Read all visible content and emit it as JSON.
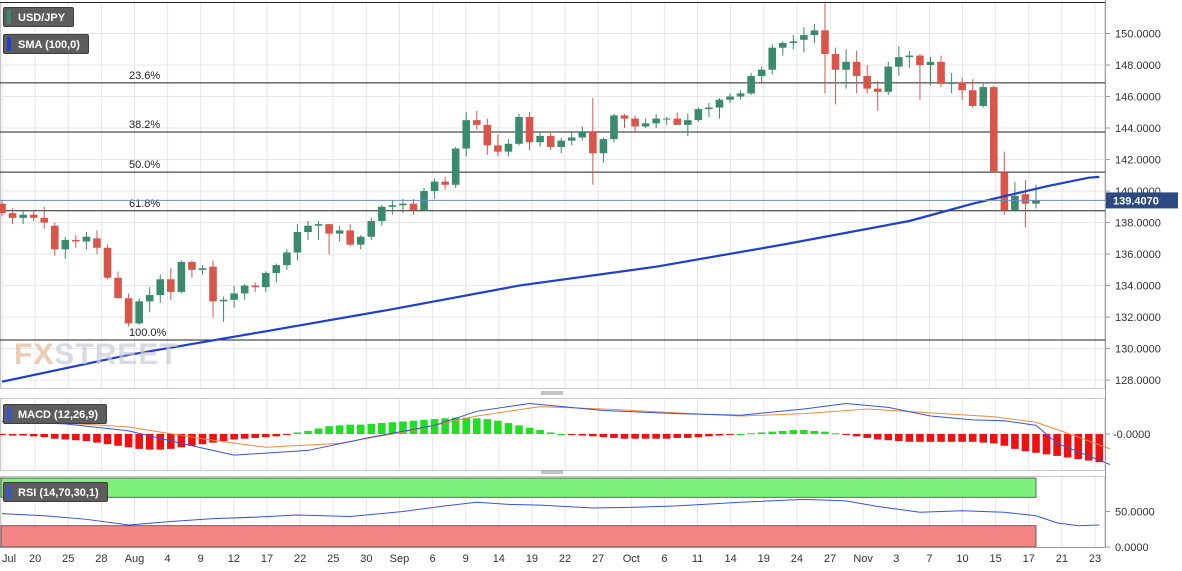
{
  "instrument": {
    "label": "USD/JPY"
  },
  "sma_label": "SMA (100,0)",
  "macd_label": "MACD (12,26,9)",
  "rsi_label": "RSI (14,70,30,1)",
  "logo": {
    "part1": "FX",
    "part2": "STREET"
  },
  "colors": {
    "bull": "#3a8a6e",
    "bear": "#d9554a",
    "sma": "#1f3fcf",
    "macd": "#3355dd",
    "signal": "#f08a3c",
    "hist_pos": "#22dd22",
    "hist_neg": "#ee1111",
    "rsi": "#3355dd",
    "overbought": "#7cf27c",
    "oversold": "#f48484",
    "grid": "#e6e6e6",
    "price_tag": "#2d4b82"
  },
  "chart_data": [
    {
      "type": "candlestick",
      "title": "USD/JPY",
      "current_price": "139.4070",
      "ylim": [
        127.5,
        152.0
      ],
      "y_ticks": [
        "128.0000",
        "130.0000",
        "132.0000",
        "134.0000",
        "136.0000",
        "138.0000",
        "140.0000",
        "142.0000",
        "144.0000",
        "146.0000",
        "148.0000",
        "150.0000"
      ],
      "x_ticks": [
        "Jul",
        "20",
        "25",
        "28",
        "Aug",
        "4",
        "9",
        "12",
        "17",
        "22",
        "25",
        "30",
        "Sep",
        "6",
        "9",
        "14",
        "19",
        "22",
        "27",
        "Oct",
        "6",
        "11",
        "14",
        "19",
        "24",
        "27",
        "Nov",
        "3",
        "7",
        "10",
        "15",
        "17",
        "21",
        "23"
      ],
      "fib_levels": [
        {
          "label": "23.6%",
          "value": 146.87
        },
        {
          "label": "38.2%",
          "value": 143.75
        },
        {
          "label": "50.0%",
          "value": 141.2
        },
        {
          "label": "61.8%",
          "value": 138.75
        },
        {
          "label": "100.0%",
          "value": 130.55
        }
      ],
      "ohlc": [
        [
          139.2,
          139.4,
          138.4,
          138.6
        ],
        [
          138.6,
          138.9,
          137.9,
          138.3
        ],
        [
          138.3,
          138.7,
          137.9,
          138.5
        ],
        [
          138.5,
          138.8,
          138.1,
          138.3
        ],
        [
          138.3,
          139.0,
          137.6,
          138.0
        ],
        [
          137.8,
          138.0,
          135.9,
          136.3
        ],
        [
          136.3,
          137.1,
          135.7,
          136.9
        ],
        [
          136.9,
          137.2,
          136.4,
          136.8
        ],
        [
          136.8,
          137.4,
          136.3,
          137.1
        ],
        [
          137.0,
          137.5,
          136.0,
          136.4
        ],
        [
          136.4,
          136.6,
          134.4,
          134.5
        ],
        [
          134.5,
          134.9,
          133.2,
          133.2
        ],
        [
          133.2,
          133.5,
          131.4,
          131.6
        ],
        [
          131.6,
          133.2,
          131.5,
          133.0
        ],
        [
          133.0,
          133.9,
          132.3,
          133.4
        ],
        [
          133.4,
          134.7,
          132.9,
          134.4
        ],
        [
          134.4,
          135.1,
          133.1,
          133.6
        ],
        [
          133.6,
          135.6,
          133.5,
          135.5
        ],
        [
          135.5,
          135.6,
          134.5,
          135.0
        ],
        [
          135.0,
          135.3,
          134.7,
          135.1
        ],
        [
          135.2,
          135.6,
          132.0,
          133.0
        ],
        [
          133.0,
          133.3,
          131.7,
          133.1
        ],
        [
          133.1,
          134.0,
          132.6,
          133.5
        ],
        [
          133.5,
          134.1,
          133.1,
          134.0
        ],
        [
          134.0,
          134.2,
          133.6,
          133.9
        ],
        [
          133.9,
          134.9,
          133.6,
          134.8
        ],
        [
          134.8,
          135.4,
          134.2,
          135.3
        ],
        [
          135.3,
          136.3,
          135.0,
          136.1
        ],
        [
          136.1,
          137.9,
          135.6,
          137.4
        ],
        [
          137.4,
          138.1,
          136.9,
          137.8
        ],
        [
          137.8,
          138.1,
          136.9,
          137.9
        ],
        [
          137.9,
          137.9,
          136.0,
          137.3
        ],
        [
          137.3,
          137.8,
          136.8,
          137.5
        ],
        [
          137.5,
          137.9,
          136.5,
          136.6
        ],
        [
          136.6,
          137.2,
          136.3,
          137.1
        ],
        [
          137.1,
          138.3,
          136.9,
          138.1
        ],
        [
          138.1,
          139.1,
          137.8,
          139.0
        ],
        [
          139.0,
          139.4,
          138.5,
          139.1
        ],
        [
          139.1,
          139.5,
          138.6,
          139.2
        ],
        [
          139.2,
          139.5,
          138.5,
          138.8
        ],
        [
          138.8,
          140.2,
          138.8,
          140.0
        ],
        [
          140.0,
          140.8,
          139.5,
          140.6
        ],
        [
          140.6,
          140.9,
          140.1,
          140.4
        ],
        [
          140.4,
          142.8,
          140.2,
          142.7
        ],
        [
          142.7,
          145.0,
          142.2,
          144.5
        ],
        [
          144.5,
          145.1,
          143.9,
          144.2
        ],
        [
          144.2,
          144.6,
          142.3,
          142.9
        ],
        [
          142.9,
          143.6,
          142.2,
          142.5
        ],
        [
          142.5,
          143.3,
          142.2,
          143.0
        ],
        [
          143.0,
          144.9,
          142.9,
          144.7
        ],
        [
          144.7,
          145.0,
          142.6,
          143.1
        ],
        [
          143.1,
          143.8,
          142.8,
          143.5
        ],
        [
          143.5,
          143.8,
          142.6,
          142.8
        ],
        [
          142.8,
          143.4,
          142.4,
          143.2
        ],
        [
          143.2,
          143.8,
          142.9,
          143.4
        ],
        [
          143.4,
          144.1,
          143.2,
          143.8
        ],
        [
          143.8,
          145.9,
          140.4,
          142.4
        ],
        [
          142.4,
          143.4,
          141.8,
          143.3
        ],
        [
          143.3,
          144.9,
          143.1,
          144.8
        ],
        [
          144.8,
          144.9,
          144.0,
          144.6
        ],
        [
          144.6,
          144.8,
          143.8,
          144.1
        ],
        [
          144.1,
          144.6,
          144.0,
          144.3
        ],
        [
          144.3,
          144.9,
          144.0,
          144.6
        ],
        [
          144.6,
          144.7,
          144.2,
          144.6
        ],
        [
          144.6,
          145.0,
          144.3,
          144.2
        ],
        [
          144.2,
          144.9,
          143.5,
          144.5
        ],
        [
          144.5,
          145.3,
          144.4,
          145.2
        ],
        [
          145.2,
          145.6,
          144.7,
          145.3
        ],
        [
          145.3,
          145.9,
          144.6,
          145.8
        ],
        [
          145.8,
          146.2,
          145.6,
          146.0
        ],
        [
          146.0,
          146.4,
          145.8,
          146.2
        ],
        [
          146.2,
          147.5,
          146.1,
          147.3
        ],
        [
          147.3,
          147.9,
          146.9,
          147.7
        ],
        [
          147.7,
          149.3,
          147.4,
          149.1
        ],
        [
          149.1,
          149.5,
          148.6,
          149.4
        ],
        [
          149.4,
          149.9,
          149.0,
          149.5
        ],
        [
          149.6,
          150.4,
          148.8,
          149.9
        ],
        [
          149.9,
          150.6,
          149.4,
          150.2
        ],
        [
          150.2,
          151.9,
          146.2,
          148.7
        ],
        [
          148.7,
          149.1,
          145.5,
          147.7
        ],
        [
          147.7,
          149.0,
          146.5,
          148.2
        ],
        [
          148.2,
          148.9,
          146.2,
          147.3
        ],
        [
          147.3,
          148.0,
          146.2,
          146.5
        ],
        [
          146.5,
          147.0,
          145.1,
          146.3
        ],
        [
          146.3,
          148.2,
          146.1,
          147.9
        ],
        [
          147.9,
          149.2,
          147.3,
          148.5
        ],
        [
          148.5,
          148.9,
          147.8,
          148.6
        ],
        [
          148.6,
          148.7,
          145.8,
          148.0
        ],
        [
          148.0,
          148.5,
          146.7,
          148.2
        ],
        [
          148.2,
          148.6,
          146.6,
          146.8
        ],
        [
          146.8,
          147.5,
          146.2,
          146.9
        ],
        [
          146.9,
          147.2,
          145.8,
          146.4
        ],
        [
          146.4,
          147.1,
          145.3,
          145.4
        ],
        [
          145.4,
          146.8,
          145.3,
          146.6
        ],
        [
          146.6,
          146.7,
          141.3,
          141.2
        ],
        [
          141.2,
          142.5,
          138.5,
          138.8
        ],
        [
          138.8,
          140.6,
          138.8,
          139.7
        ],
        [
          139.8,
          140.7,
          137.7,
          139.2
        ],
        [
          139.2,
          140.4,
          138.9,
          139.4
        ]
      ],
      "sma_series": [
        [
          0,
          127.9
        ],
        [
          12,
          129.6
        ],
        [
          25,
          131.1
        ],
        [
          37,
          132.5
        ],
        [
          49,
          134.0
        ],
        [
          62,
          135.2
        ],
        [
          74,
          136.6
        ],
        [
          86,
          138.1
        ],
        [
          92,
          139.2
        ],
        [
          99,
          140.3
        ],
        [
          103,
          140.85
        ],
        [
          104,
          140.9
        ]
      ],
      "x_labels_note": "",
      "ylabel": ""
    },
    {
      "type": "line",
      "title": "MACD (12,26,9)",
      "y_ticks": [
        "-0.0000"
      ],
      "macd_series": [
        [
          0,
          0.8
        ],
        [
          6,
          0.65
        ],
        [
          12,
          0.2
        ],
        [
          17,
          -0.6
        ],
        [
          22,
          -1.35
        ],
        [
          29,
          -1.05
        ],
        [
          35,
          -0.2
        ],
        [
          41,
          0.55
        ],
        [
          45,
          1.45
        ],
        [
          50,
          1.95
        ],
        [
          57,
          1.5
        ],
        [
          64,
          1.3
        ],
        [
          70,
          1.2
        ],
        [
          76,
          1.6
        ],
        [
          80,
          1.95
        ],
        [
          84,
          1.7
        ],
        [
          88,
          1.15
        ],
        [
          92,
          0.9
        ],
        [
          95,
          0.85
        ],
        [
          98,
          0.55
        ],
        [
          100,
          -0.6
        ],
        [
          103,
          -1.4
        ],
        [
          105,
          -1.95
        ]
      ],
      "signal_series": [
        [
          0,
          0.95
        ],
        [
          12,
          0.45
        ],
        [
          19,
          -0.3
        ],
        [
          25,
          -0.85
        ],
        [
          32,
          -0.6
        ],
        [
          39,
          0.25
        ],
        [
          45,
          1.15
        ],
        [
          51,
          1.75
        ],
        [
          57,
          1.6
        ],
        [
          64,
          1.35
        ],
        [
          70,
          1.15
        ],
        [
          76,
          1.3
        ],
        [
          82,
          1.6
        ],
        [
          88,
          1.35
        ],
        [
          94,
          1.1
        ],
        [
          98,
          0.75
        ],
        [
          101,
          0.05
        ],
        [
          104,
          -0.7
        ],
        [
          105,
          -0.95
        ]
      ],
      "histogram": [
        -0.05,
        -0.1,
        -0.1,
        -0.15,
        -0.2,
        -0.3,
        -0.35,
        -0.4,
        -0.45,
        -0.55,
        -0.65,
        -0.75,
        -0.85,
        -0.95,
        -1.0,
        -1.0,
        -0.95,
        -0.85,
        -0.75,
        -0.65,
        -0.55,
        -0.45,
        -0.35,
        -0.3,
        -0.25,
        -0.2,
        -0.15,
        -0.05,
        0.1,
        0.2,
        0.35,
        0.5,
        0.55,
        0.6,
        0.6,
        0.65,
        0.7,
        0.75,
        0.8,
        0.85,
        0.9,
        0.95,
        1.0,
        1.05,
        1.05,
        1.0,
        0.95,
        0.85,
        0.7,
        0.55,
        0.4,
        0.25,
        0.1,
        0.0,
        -0.05,
        -0.1,
        -0.15,
        -0.2,
        -0.25,
        -0.3,
        -0.3,
        -0.3,
        -0.3,
        -0.3,
        -0.25,
        -0.25,
        -0.2,
        -0.15,
        -0.1,
        -0.05,
        0.0,
        0.05,
        0.1,
        0.15,
        0.2,
        0.25,
        0.25,
        0.2,
        0.15,
        0.05,
        -0.05,
        -0.15,
        -0.25,
        -0.35,
        -0.4,
        -0.45,
        -0.5,
        -0.5,
        -0.5,
        -0.5,
        -0.5,
        -0.5,
        -0.5,
        -0.55,
        -0.6,
        -0.75,
        -0.95,
        -1.1,
        -1.2,
        -1.3,
        -1.4,
        -1.5,
        -1.6,
        -1.7,
        -1.8
      ],
      "ylim": [
        -2.3,
        2.3
      ]
    },
    {
      "type": "line",
      "title": "RSI (14,70,30,1)",
      "y_ticks": [
        "50.0000",
        "0.0000"
      ],
      "ylim": [
        0,
        100
      ],
      "overbought": 70,
      "oversold": 30,
      "rsi_series": [
        [
          0,
          47
        ],
        [
          4,
          44
        ],
        [
          8,
          39
        ],
        [
          12,
          31
        ],
        [
          16,
          36
        ],
        [
          20,
          40
        ],
        [
          24,
          42
        ],
        [
          28,
          45
        ],
        [
          33,
          43
        ],
        [
          38,
          50
        ],
        [
          42,
          58
        ],
        [
          45,
          63
        ],
        [
          48,
          60
        ],
        [
          51,
          59
        ],
        [
          56,
          55
        ],
        [
          60,
          56
        ],
        [
          64,
          58
        ],
        [
          70,
          63
        ],
        [
          76,
          67
        ],
        [
          80,
          65
        ],
        [
          83,
          57
        ],
        [
          87,
          49
        ],
        [
          91,
          51
        ],
        [
          95,
          49
        ],
        [
          98,
          44
        ],
        [
          100,
          34
        ],
        [
          102,
          30
        ],
        [
          104,
          31
        ]
      ]
    }
  ]
}
